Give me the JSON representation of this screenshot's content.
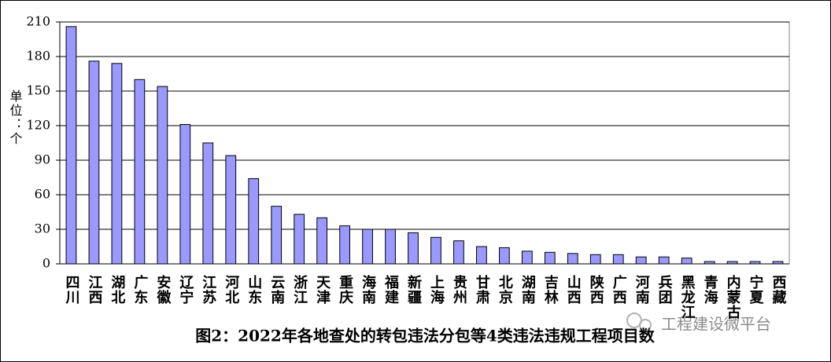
{
  "chart_data": {
    "type": "bar",
    "title": "图2：2022年各地查处的转包违法分包等4类违法违规工程项目数",
    "y_label": "单位：个",
    "watermark": "工程建设微平台",
    "categories": [
      "四川",
      "江西",
      "湖北",
      "广东",
      "安徽",
      "辽宁",
      "江苏",
      "河北",
      "山东",
      "云南",
      "浙江",
      "天津",
      "重庆",
      "海南",
      "福建",
      "新疆",
      "上海",
      "贵州",
      "甘肃",
      "北京",
      "湖南",
      "吉林",
      "山西",
      "陕西",
      "广西",
      "河南",
      "兵团",
      "黑龙江",
      "青海",
      "内蒙古",
      "宁夏",
      "西藏"
    ],
    "values": [
      206,
      176,
      174,
      160,
      154,
      121,
      105,
      94,
      74,
      50,
      43,
      40,
      33,
      30,
      30,
      27,
      23,
      20,
      15,
      14,
      11,
      10,
      9,
      8,
      8,
      6,
      6,
      5,
      2,
      2,
      2,
      2
    ],
    "color": "#9999ff",
    "ylim": [
      0,
      210
    ],
    "yticks": [
      0,
      30,
      60,
      90,
      120,
      150,
      180,
      210
    ],
    "grid": true
  }
}
